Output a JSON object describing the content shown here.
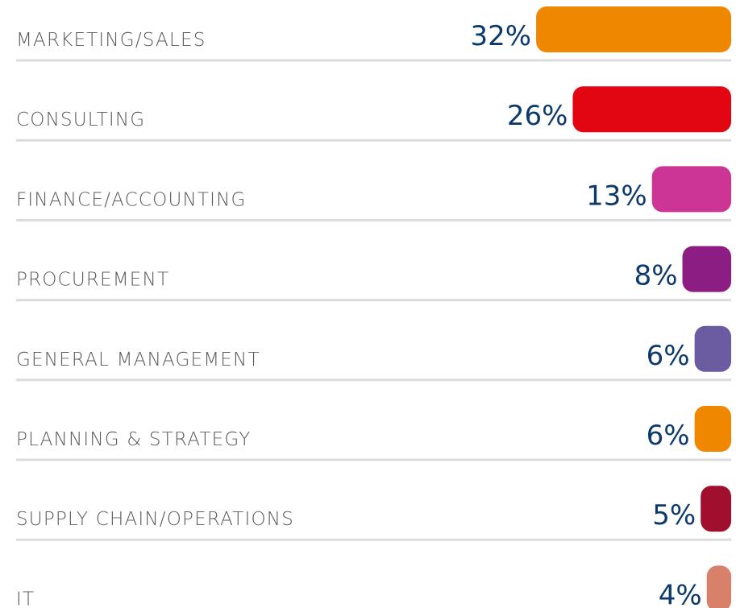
{
  "chart_data": {
    "type": "bar",
    "categories": [
      "MARKETING/SALES",
      "CONSULTING",
      "FINANCE/ACCOUNTING",
      "PROCUREMENT",
      "GENERAL MANAGEMENT",
      "PLANNING & STRATEGY",
      "SUPPLY CHAIN/OPERATIONS",
      "IT"
    ],
    "values": [
      32,
      26,
      13,
      8,
      6,
      6,
      5,
      4
    ],
    "value_labels": [
      "32%",
      "26%",
      "13%",
      "8%",
      "6%",
      "6%",
      "5%",
      "4%"
    ],
    "colors": [
      "#f08700",
      "#e20613",
      "#cc3594",
      "#8c1d82",
      "#6b5ba1",
      "#f08700",
      "#a0102e",
      "#d9806a"
    ]
  }
}
